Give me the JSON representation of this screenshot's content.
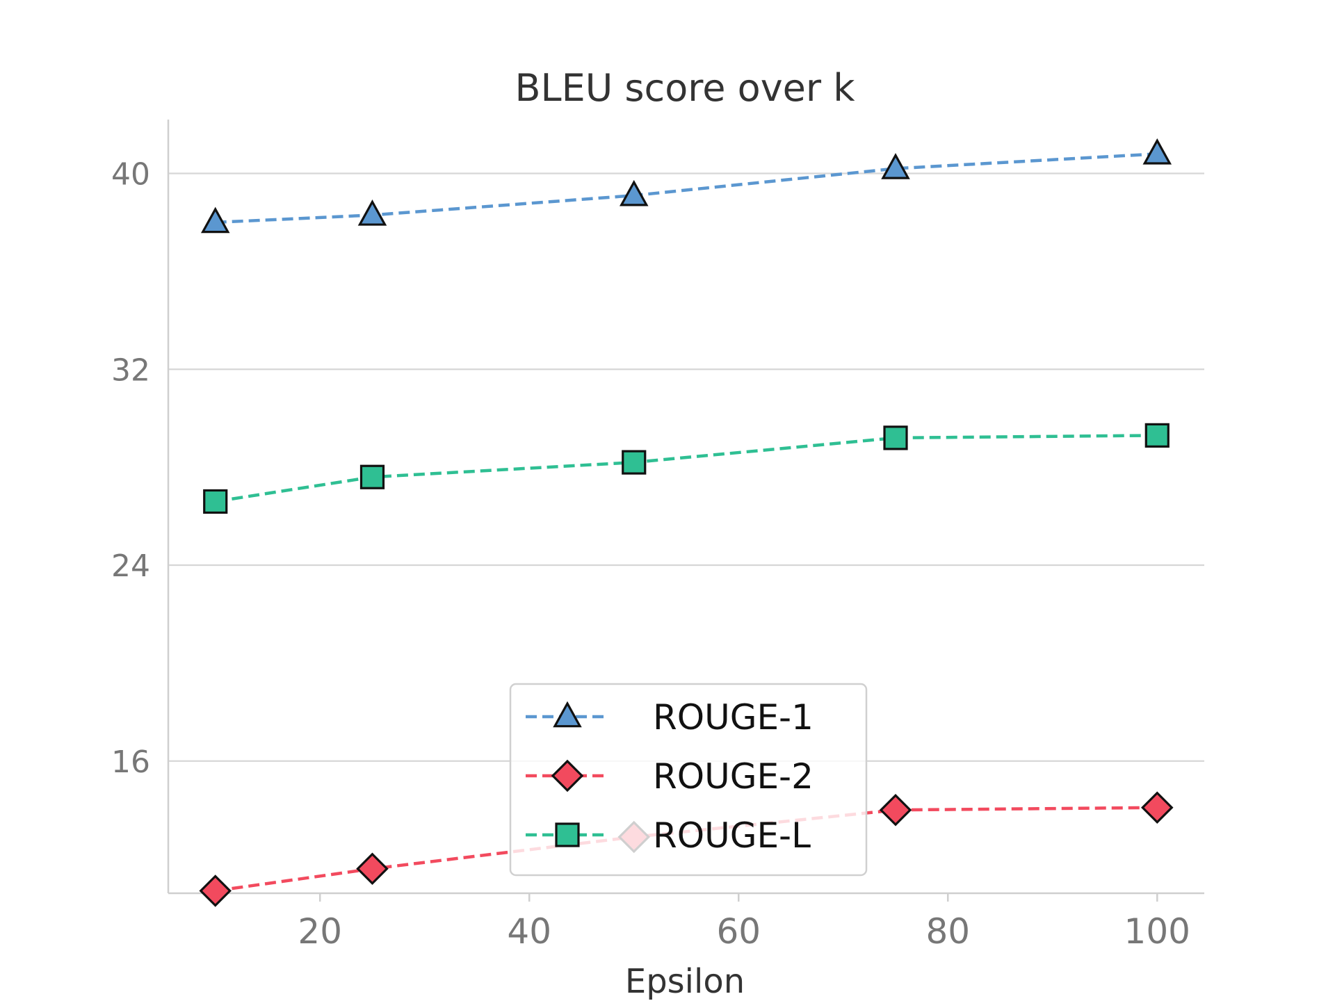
{
  "chart_data": {
    "type": "line",
    "title": "BLEU score over k",
    "xlabel": "Epsilon",
    "ylabel": "",
    "x": [
      10,
      25,
      50,
      75,
      100
    ],
    "xlim": [
      5.5,
      104.5
    ],
    "ylim": [
      10.6,
      42.2
    ],
    "xticks": [
      20,
      40,
      60,
      80,
      100
    ],
    "yticks": [
      16,
      24,
      32,
      40
    ],
    "grid": "horizontal",
    "legend_position": "lower-center",
    "series": [
      {
        "name": "ROUGE-1",
        "values": [
          38.0,
          38.3,
          39.1,
          40.2,
          40.8
        ],
        "color": "#5b97d0",
        "marker": "triangle"
      },
      {
        "name": "ROUGE-2",
        "values": [
          10.7,
          11.6,
          12.9,
          14.0,
          14.1
        ],
        "color": "#f24a5e",
        "marker": "diamond"
      },
      {
        "name": "ROUGE-L",
        "values": [
          26.6,
          27.6,
          28.2,
          29.2,
          29.3
        ],
        "color": "#2fbf93",
        "marker": "square"
      }
    ]
  }
}
